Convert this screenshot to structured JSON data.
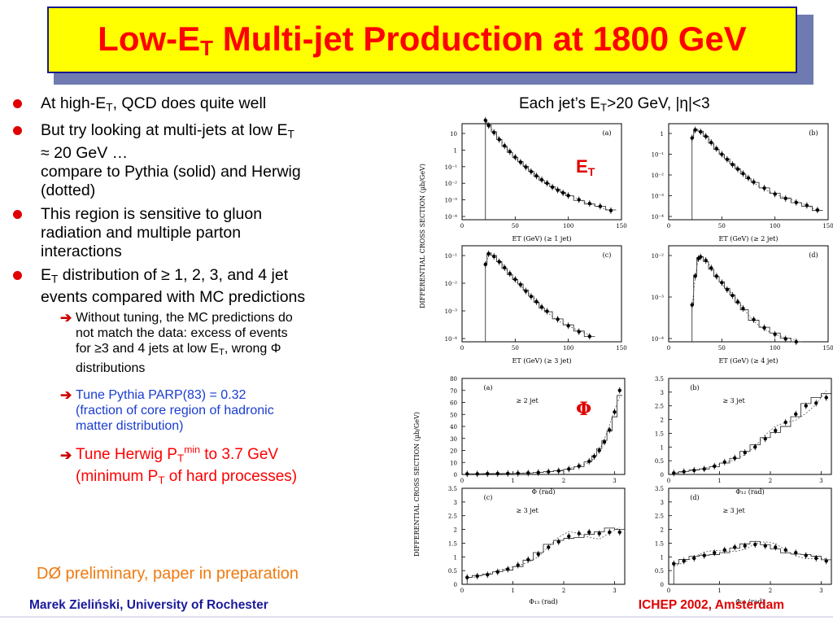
{
  "title": {
    "prefix": "Low-E",
    "sub": "T",
    "suffix": " Multi-jet Production at 1800 GeV"
  },
  "bullets": {
    "b1": {
      "pre": "At high-E",
      "sub": "T",
      "post": ", QCD does quite well"
    },
    "b2": {
      "pre": "But try looking at multi-jets at low E",
      "sub": "T",
      "line2": "≈ 20 GeV …",
      "line3": "compare to Pythia (solid) and Herwig",
      "line4": "(dotted)"
    },
    "b3": {
      "line1": "This region is sensitive to gluon",
      "line2": "radiation and multiple parton",
      "line3": "interactions"
    },
    "b4": {
      "pre": "E",
      "sub": "T",
      "post": " distribution of ≥ 1, 2, 3, and 4 jet",
      "line2": "events compared with MC predictions"
    },
    "s1": {
      "line1": "Without tuning, the MC predictions do",
      "line2": "not match the data: excess of events",
      "line3pre": "for  ≥3 and 4 jets at low E",
      "sub": "T",
      "line3post": ", wrong Φ",
      "line4": "distributions"
    },
    "s2": {
      "line1": "Tune Pythia PARP(83) = 0.32",
      "line2": "(fraction of core region of  hadronic",
      "line3": "matter distribution)"
    },
    "s3": {
      "pre": "Tune Herwig P",
      "sub": "T",
      "sup": "min",
      "post": " to 3.7 GeV",
      "line2pre": "(minimum P",
      "line2sub": "T",
      "line2post": " of hard processes)"
    }
  },
  "preliminary": "DØ  preliminary, paper in preparation",
  "each_jet": {
    "pre": "Each jet’s E",
    "sub": "T",
    "post": ">20 GeV, |η|<3"
  },
  "labels": {
    "et_main": "E",
    "et_sub": "T",
    "phi": "Φ"
  },
  "footer": {
    "left": "Marek Zieliński, University of Rochester",
    "right": "ICHEP 2002, Amsterdam"
  },
  "colors": {
    "title_bg": "#ffff00",
    "title_text": "#ff0000",
    "bullet_dot": "#e00000",
    "blue_text": "#1a3cd0",
    "orange_text": "#f07a10",
    "footer_left": "#1a1a9c"
  },
  "plot_text": {
    "y_axis_et": "DIFFERENTIAL   CROSS   SECTION  (µb/GeV)",
    "y_axis_phi": "DIFFERENTIAL   CROSS   SECTION  (µb/GeV)",
    "panel_labels": [
      "(a)",
      "(b)",
      "(c)",
      "(d)"
    ],
    "et_xticks": [
      "0",
      "50",
      "100",
      "150"
    ],
    "et_xlabels": [
      "E_T (GeV) (≥ 1 jet)",
      "E_T (GeV) (≥ 2 jet)",
      "E_T (GeV) (≥ 3 jet)",
      "E_T (GeV) (≥ 4 jet)"
    ],
    "et_yticks_a": [
      "10",
      "1",
      "10⁻¹",
      "10⁻²",
      "10⁻³",
      "10⁻⁴"
    ],
    "et_yticks_b": [
      "1",
      "10⁻¹",
      "10⁻²",
      "10⁻³",
      "10⁻⁴"
    ],
    "et_yticks_c": [
      "10⁻¹",
      "10⁻²",
      "10⁻³",
      "10⁻⁴"
    ],
    "et_yticks_d": [
      "10⁻²",
      "10⁻³",
      "10⁻⁴"
    ],
    "phi_tags": [
      "≥ 2 jet",
      "≥ 3 jet",
      "≥ 3 jet",
      "≥ 3 jet"
    ],
    "phi_xlabels": [
      "Φ (rad)",
      "Φ₁₂ (rad)",
      "Φ₁₃ (rad)",
      "Φ₂₃ (rad)"
    ],
    "phi_xticks": [
      "0",
      "1",
      "2",
      "3"
    ],
    "phi_yticks_a": [
      "0",
      "10",
      "20",
      "30",
      "40",
      "50",
      "60",
      "70",
      "80"
    ],
    "phi_yticks_b": [
      "0",
      "0.5",
      "1",
      "1.5",
      "2",
      "2.5",
      "3",
      "3.5"
    ],
    "phi_yticks_c": [
      "0",
      "0.5",
      "1",
      "1.5",
      "2",
      "2.5",
      "3",
      "3.5"
    ],
    "phi_yticks_d": [
      "0",
      "0.5",
      "1",
      "1.5",
      "2",
      "2.5",
      "3",
      "3.5"
    ]
  },
  "chart_data": [
    {
      "type": "scatter",
      "panel": "(a)",
      "xlabel": "E_T (GeV) (≥ 1 jet)",
      "ylabel": "DIFFERENTIAL CROSS SECTION (µb/GeV)",
      "xlim": [
        0,
        150
      ],
      "ylim": [
        0.0001,
        10
      ],
      "yscale": "log",
      "series": [
        {
          "x": [
            22,
            25,
            30,
            35,
            40,
            45,
            50,
            55,
            60,
            65,
            70,
            75,
            80,
            85,
            90,
            95,
            100,
            110,
            120,
            130,
            140
          ],
          "y": [
            15,
            8,
            3.5,
            1.5,
            0.7,
            0.35,
            0.18,
            0.1,
            0.055,
            0.032,
            0.019,
            0.012,
            0.008,
            0.005,
            0.0035,
            0.0025,
            0.0018,
            0.0011,
            0.0007,
            0.0005,
            0.0003
          ]
        }
      ]
    },
    {
      "type": "scatter",
      "panel": "(b)",
      "xlabel": "E_T (GeV) (≥ 2 jet)",
      "ylabel": "DIFFERENTIAL CROSS SECTION (µb/GeV)",
      "xlim": [
        0,
        150
      ],
      "ylim": [
        0.0001,
        5
      ],
      "yscale": "log",
      "series": [
        {
          "x": [
            22,
            25,
            30,
            35,
            40,
            45,
            50,
            55,
            60,
            65,
            70,
            75,
            80,
            90,
            100,
            110,
            120,
            130,
            140
          ],
          "y": [
            1.0,
            2.5,
            2.0,
            1.2,
            0.6,
            0.3,
            0.16,
            0.09,
            0.05,
            0.03,
            0.018,
            0.011,
            0.007,
            0.0035,
            0.0018,
            0.0011,
            0.0007,
            0.0005,
            0.0003
          ]
        }
      ]
    },
    {
      "type": "scatter",
      "panel": "(c)",
      "xlabel": "E_T (GeV) (≥ 3 jet)",
      "ylabel": "DIFFERENTIAL CROSS SECTION (µb/GeV)",
      "xlim": [
        0,
        150
      ],
      "ylim": [
        5e-05,
        0.2
      ],
      "yscale": "log",
      "series": [
        {
          "x": [
            22,
            25,
            30,
            35,
            40,
            45,
            50,
            55,
            60,
            65,
            70,
            75,
            80,
            90,
            100,
            110,
            120
          ],
          "y": [
            0.04,
            0.1,
            0.08,
            0.05,
            0.03,
            0.018,
            0.011,
            0.007,
            0.004,
            0.0025,
            0.0016,
            0.001,
            0.0007,
            0.00035,
            0.0002,
            0.00012,
            8e-05
          ]
        }
      ]
    },
    {
      "type": "scatter",
      "panel": "(d)",
      "xlabel": "E_T (GeV) (≥ 4 jet)",
      "ylabel": "DIFFERENTIAL CROSS SECTION (µb/GeV)",
      "xlim": [
        0,
        150
      ],
      "ylim": [
        5e-05,
        0.02
      ],
      "yscale": "log",
      "series": [
        {
          "x": [
            22,
            25,
            28,
            30,
            35,
            40,
            45,
            50,
            55,
            60,
            65,
            70,
            80,
            90,
            100,
            110,
            120
          ],
          "y": [
            0.0005,
            0.003,
            0.009,
            0.01,
            0.008,
            0.005,
            0.003,
            0.002,
            0.0013,
            0.0009,
            0.0006,
            0.0004,
            0.0002,
            0.00012,
            8e-05,
            6e-05,
            5e-05
          ]
        }
      ]
    },
    {
      "type": "scatter",
      "panel": "(a)",
      "tag": "≥ 2 jet",
      "xlabel": "Φ (rad)",
      "ylabel": "DIFFERENTIAL CROSS SECTION (µb/GeV)",
      "xlim": [
        0,
        3.2
      ],
      "ylim": [
        0,
        80
      ],
      "series": [
        {
          "x": [
            0.1,
            0.3,
            0.5,
            0.7,
            0.9,
            1.1,
            1.3,
            1.5,
            1.7,
            1.9,
            2.1,
            2.3,
            2.5,
            2.6,
            2.7,
            2.8,
            2.9,
            3.0,
            3.1
          ],
          "y": [
            0.5,
            0.5,
            0.6,
            0.7,
            0.8,
            1.0,
            1.2,
            1.6,
            2.2,
            3.0,
            4.5,
            7,
            11,
            15,
            20,
            27,
            37,
            52,
            70
          ]
        }
      ]
    },
    {
      "type": "scatter",
      "panel": "(b)",
      "tag": "≥ 3 jet",
      "xlabel": "Φ₁₂ (rad)",
      "ylabel": "DIFFERENTIAL CROSS SECTION (µb/GeV)",
      "xlim": [
        0,
        3.2
      ],
      "ylim": [
        0,
        3.5
      ],
      "series": [
        {
          "x": [
            0.1,
            0.3,
            0.5,
            0.7,
            0.9,
            1.1,
            1.3,
            1.5,
            1.7,
            1.9,
            2.1,
            2.3,
            2.5,
            2.7,
            2.9,
            3.1
          ],
          "y": [
            0.05,
            0.1,
            0.15,
            0.2,
            0.3,
            0.45,
            0.6,
            0.8,
            1.0,
            1.3,
            1.6,
            1.9,
            2.2,
            2.5,
            2.6,
            2.8
          ]
        }
      ]
    },
    {
      "type": "scatter",
      "panel": "(c)",
      "tag": "≥ 3 jet",
      "xlabel": "Φ₁₃ (rad)",
      "ylabel": "DIFFERENTIAL CROSS SECTION (µb/GeV)",
      "xlim": [
        0,
        3.2
      ],
      "ylim": [
        0,
        3.5
      ],
      "series": [
        {
          "x": [
            0.1,
            0.3,
            0.5,
            0.7,
            0.9,
            1.1,
            1.3,
            1.5,
            1.7,
            1.9,
            2.1,
            2.3,
            2.5,
            2.7,
            2.9,
            3.1
          ],
          "y": [
            0.25,
            0.3,
            0.35,
            0.45,
            0.55,
            0.7,
            0.9,
            1.1,
            1.35,
            1.55,
            1.75,
            1.85,
            1.9,
            1.85,
            1.9,
            1.9
          ]
        }
      ]
    },
    {
      "type": "scatter",
      "panel": "(d)",
      "tag": "≥ 3 jet",
      "xlabel": "Φ₂₃ (rad)",
      "ylabel": "DIFFERENTIAL CROSS SECTION (µb/GeV)",
      "xlim": [
        0,
        3.2
      ],
      "ylim": [
        0,
        3.5
      ],
      "series": [
        {
          "x": [
            0.1,
            0.3,
            0.5,
            0.7,
            0.9,
            1.1,
            1.3,
            1.5,
            1.7,
            1.9,
            2.1,
            2.3,
            2.5,
            2.7,
            2.9,
            3.1
          ],
          "y": [
            0.75,
            0.85,
            0.95,
            1.05,
            1.15,
            1.25,
            1.35,
            1.4,
            1.45,
            1.4,
            1.35,
            1.25,
            1.15,
            1.05,
            0.95,
            0.85
          ]
        }
      ]
    }
  ]
}
